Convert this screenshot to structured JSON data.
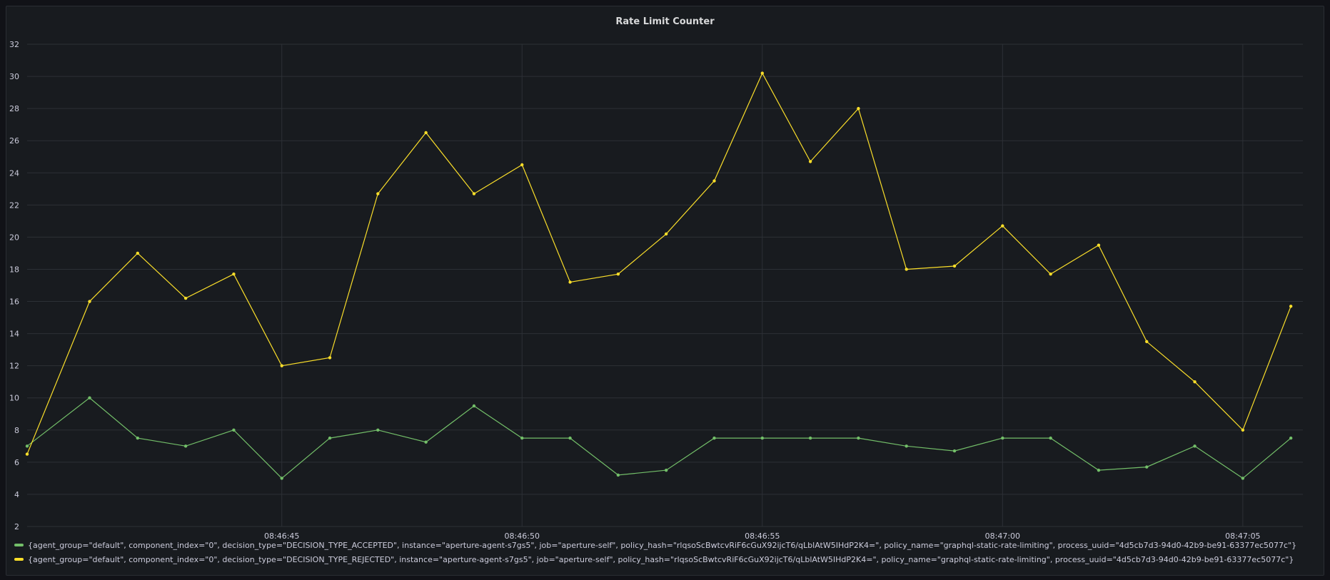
{
  "panel": {
    "title": "Rate Limit Counter"
  },
  "colors": {
    "accepted": "#73bf69",
    "rejected": "#fade2a",
    "grid": "#2c3036",
    "text": "#ccccdc",
    "background": "#181b1f"
  },
  "chart_data": {
    "type": "line",
    "title": "Rate Limit Counter",
    "xlabel": "",
    "ylabel": "",
    "ylim": [
      2,
      32
    ],
    "yticks": [
      2,
      4,
      6,
      8,
      10,
      12,
      14,
      16,
      18,
      20,
      22,
      24,
      26,
      28,
      30,
      32
    ],
    "x_tick_labels": [
      "08:46:45",
      "08:46:50",
      "08:46:55",
      "08:47:00",
      "08:47:05"
    ],
    "x_tick_seconds": [
      45,
      50,
      55,
      60,
      65
    ],
    "xlim_seconds": [
      39.7,
      66.25
    ],
    "x": [
      39.7,
      41,
      42,
      43,
      44,
      45,
      46,
      47,
      48,
      49,
      50,
      51,
      52,
      53,
      54,
      55,
      56,
      57,
      58,
      59,
      60,
      61,
      62,
      63,
      64,
      65,
      66
    ],
    "grid": true,
    "legend_position": "bottom",
    "series": [
      {
        "name": "{agent_group=\"default\", component_index=\"0\", decision_type=\"DECISION_TYPE_ACCEPTED\", instance=\"aperture-agent-s7gs5\", job=\"aperture-self\", policy_hash=\"rlqsoScBwtcvRiF6cGuX92ijcT6/qLblAtW5IHdP2K4=\", policy_name=\"graphql-static-rate-limiting\", process_uuid=\"4d5cb7d3-94d0-42b9-be91-63377ec5077c\"}",
        "color": "#73bf69",
        "values": [
          7.0,
          10.0,
          7.5,
          7.0,
          8.0,
          5.0,
          7.5,
          8.0,
          7.25,
          9.5,
          7.5,
          7.5,
          5.2,
          5.5,
          7.5,
          7.5,
          7.5,
          7.5,
          7.0,
          6.7,
          7.5,
          7.5,
          5.5,
          5.7,
          7.0,
          5.0,
          7.5
        ]
      },
      {
        "name": "{agent_group=\"default\", component_index=\"0\", decision_type=\"DECISION_TYPE_REJECTED\", instance=\"aperture-agent-s7gs5\", job=\"aperture-self\", policy_hash=\"rlqsoScBwtcvRiF6cGuX92ijcT6/qLblAtW5IHdP2K4=\", policy_name=\"graphql-static-rate-limiting\", process_uuid=\"4d5cb7d3-94d0-42b9-be91-63377ec5077c\"}",
        "color": "#fade2a",
        "values": [
          6.5,
          16.0,
          19.0,
          16.2,
          17.7,
          12.0,
          12.5,
          22.7,
          26.5,
          22.7,
          24.5,
          17.2,
          17.7,
          20.2,
          23.5,
          30.2,
          24.7,
          28.0,
          18.0,
          18.2,
          20.7,
          17.7,
          19.5,
          13.5,
          11.0,
          8.0,
          15.7
        ]
      }
    ]
  }
}
